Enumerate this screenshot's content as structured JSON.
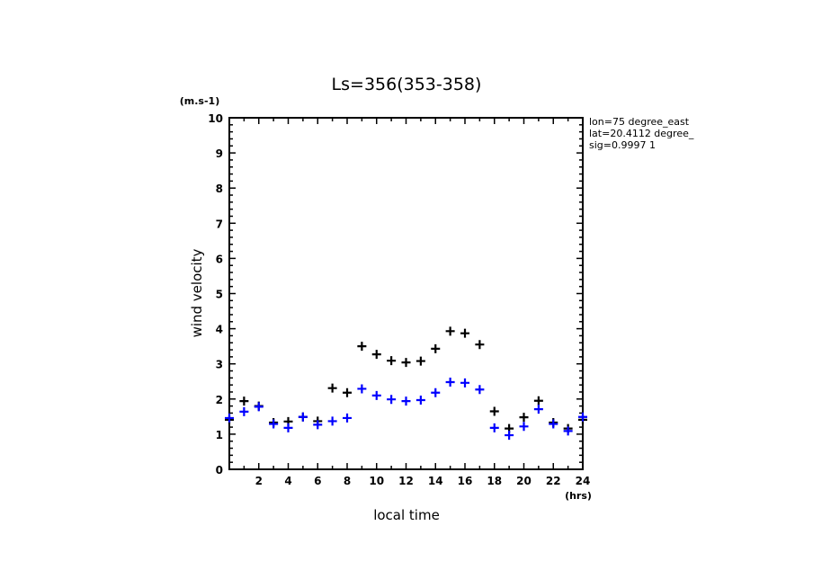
{
  "chart_data": {
    "type": "scatter",
    "title": "Ls=356(353-358)",
    "xlabel": "local time",
    "ylabel": "wind velocity",
    "x_unit": "(hrs)",
    "y_unit": "(m.s-1)",
    "xlim": [
      0,
      24
    ],
    "ylim": [
      0,
      10
    ],
    "x_ticks": [
      2,
      4,
      6,
      8,
      10,
      12,
      14,
      16,
      18,
      20,
      22,
      24
    ],
    "y_ticks": [
      0,
      1,
      2,
      3,
      4,
      5,
      6,
      7,
      8,
      9,
      10
    ],
    "grid": false,
    "marker": "plus",
    "info_lines": [
      "lon=75 degree_east",
      "lat=20.4112 degree_",
      "sig=0.9997 1"
    ],
    "series": [
      {
        "name": "black",
        "color": "#000000",
        "x": [
          0,
          1,
          2,
          3,
          4,
          5,
          6,
          7,
          8,
          9,
          10,
          11,
          12,
          13,
          14,
          15,
          16,
          17,
          18,
          19,
          20,
          21,
          22,
          23,
          24
        ],
        "values": [
          1.41,
          1.94,
          1.8,
          1.33,
          1.36,
          1.49,
          1.37,
          2.31,
          2.18,
          3.5,
          3.27,
          3.09,
          3.04,
          3.08,
          3.43,
          3.93,
          3.87,
          3.55,
          1.65,
          1.16,
          1.48,
          1.95,
          1.33,
          1.16,
          1.41
        ]
      },
      {
        "name": "blue",
        "color": "#0000ff",
        "x": [
          0,
          1,
          2,
          3,
          4,
          5,
          6,
          7,
          8,
          9,
          10,
          11,
          12,
          13,
          14,
          15,
          16,
          17,
          18,
          19,
          20,
          21,
          22,
          23,
          24
        ],
        "values": [
          1.46,
          1.64,
          1.78,
          1.29,
          1.18,
          1.49,
          1.27,
          1.37,
          1.46,
          2.29,
          2.1,
          1.99,
          1.94,
          1.97,
          2.18,
          2.48,
          2.46,
          2.27,
          1.18,
          0.97,
          1.22,
          1.71,
          1.29,
          1.09,
          1.49
        ]
      }
    ]
  }
}
